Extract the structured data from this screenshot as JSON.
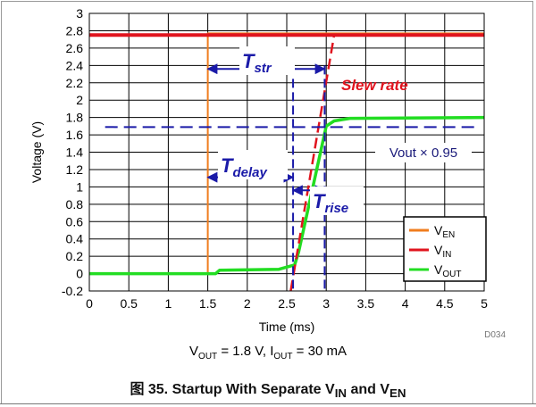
{
  "chart_data": {
    "type": "line",
    "xlabel": "Time (ms)",
    "ylabel": "Voltage (V)",
    "xlim": [
      0,
      5
    ],
    "ylim": [
      -0.2,
      3
    ],
    "x_ticks": [
      0,
      0.5,
      1,
      1.5,
      2,
      2.5,
      3,
      3.5,
      4,
      4.5,
      5
    ],
    "y_ticks": [
      -0.2,
      0,
      0.2,
      0.4,
      0.6,
      0.8,
      1,
      1.2,
      1.4,
      1.6,
      1.8,
      2,
      2.2,
      2.4,
      2.6,
      2.8,
      3
    ],
    "grid": true,
    "legend_position": "bottom-right",
    "series": [
      {
        "name": "VEN",
        "color": "#f07d1e",
        "points": [
          [
            0,
            0
          ],
          [
            1.5,
            0
          ],
          [
            1.5,
            2.77
          ],
          [
            5,
            2.77
          ]
        ]
      },
      {
        "name": "VIN",
        "color": "#e0141e",
        "points": [
          [
            0,
            2.75
          ],
          [
            5,
            2.75
          ]
        ]
      },
      {
        "name": "VOUT",
        "color": "#22dd22",
        "points": [
          [
            0,
            0
          ],
          [
            1.6,
            0
          ],
          [
            1.65,
            0.04
          ],
          [
            2.4,
            0.05
          ],
          [
            2.6,
            0.1
          ],
          [
            2.65,
            0.25
          ],
          [
            3.0,
            1.7
          ],
          [
            3.1,
            1.76
          ],
          [
            3.3,
            1.79
          ],
          [
            5,
            1.8
          ]
        ]
      }
    ],
    "annotations": {
      "slew_rate": {
        "label": "Slew rate",
        "x": [
          2.55,
          3.1
        ],
        "y": [
          -0.2,
          2.75
        ],
        "color": "#e0141e"
      },
      "vout_095": {
        "label": "Vout × 0.95",
        "y": 1.69,
        "color": "#1a1aa8"
      },
      "t_str": {
        "label": "T",
        "sub": "str",
        "x_start": 1.5,
        "x_end": 2.98,
        "y": 2.36
      },
      "t_delay": {
        "label": "T",
        "sub": "delay",
        "x_start": 1.5,
        "x_end": 2.58,
        "y": 1.11
      },
      "t_rise": {
        "label": "T",
        "sub": "rise",
        "x_start": 2.58,
        "x_end": 2.98,
        "y": 0.96
      },
      "markers_x": [
        2.58,
        2.98
      ],
      "vout_cross_y": 1.69
    },
    "legend": [
      {
        "main": "V",
        "sub": "EN",
        "color": "#f07d1e"
      },
      {
        "main": "V",
        "sub": "IN",
        "color": "#e0141e"
      },
      {
        "main": "V",
        "sub": "OUT",
        "color": "#22dd22"
      }
    ],
    "condition": {
      "v_main": "V",
      "v_sub": "OUT",
      "v_rest": " = 1.8 V, ",
      "i_main": "I",
      "i_sub": "OUT",
      "i_rest": " = 30 mA"
    },
    "doc_id": "D034"
  },
  "caption": {
    "prefix": "图 35. Startup With Separate V",
    "sub1": "IN",
    "mid": " and V",
    "sub2": "EN"
  }
}
